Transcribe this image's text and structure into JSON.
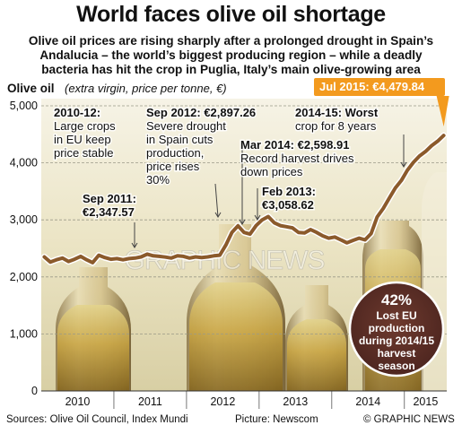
{
  "header": {
    "title": "World faces olive oil shortage",
    "subtitle_lines": [
      "Olive oil prices are rising sharply after a prolonged drought in Spain’s",
      "Andalucia – the world’s biggest producing region – while a deadly",
      "bacteria has hit the crop in Puglia, Italy’s main olive-growing area"
    ]
  },
  "chart_data": {
    "type": "line",
    "title": "Olive oil",
    "subtitle": "(extra virgin, price per tonne, €)",
    "ylim": [
      0,
      5000
    ],
    "yticks": [
      "0",
      "1,000",
      "2,000",
      "3,000",
      "4,000",
      "5,000"
    ],
    "xticks": [
      "2010",
      "2011",
      "2012",
      "2013",
      "2014",
      "2015"
    ],
    "grid": true,
    "series": [
      {
        "x": [
          "2010-01",
          "2010-02",
          "2010-03",
          "2010-04",
          "2010-05",
          "2010-06",
          "2010-07",
          "2010-08",
          "2010-09",
          "2010-10",
          "2010-11",
          "2010-12",
          "2011-01",
          "2011-02",
          "2011-03",
          "2011-04",
          "2011-05",
          "2011-06",
          "2011-07",
          "2011-08",
          "2011-09",
          "2011-10",
          "2011-11",
          "2011-12",
          "2012-01",
          "2012-02",
          "2012-03",
          "2012-04",
          "2012-05",
          "2012-06",
          "2012-07",
          "2012-08",
          "2012-09",
          "2012-10",
          "2012-11",
          "2012-12",
          "2013-01",
          "2013-02",
          "2013-03",
          "2013-04",
          "2013-05",
          "2013-06",
          "2013-07",
          "2013-08",
          "2013-09",
          "2013-10",
          "2013-11",
          "2013-12",
          "2014-01",
          "2014-02",
          "2014-03",
          "2014-04",
          "2014-05",
          "2014-06",
          "2014-07",
          "2014-08",
          "2014-09",
          "2014-10",
          "2014-11",
          "2014-12",
          "2015-01",
          "2015-02",
          "2015-03",
          "2015-04",
          "2015-05",
          "2015-06",
          "2015-07"
        ],
        "values": [
          2350,
          2260,
          2300,
          2330,
          2270,
          2310,
          2360,
          2300,
          2250,
          2380,
          2340,
          2310,
          2320,
          2300,
          2320,
          2330,
          2350,
          2400,
          2370,
          2360,
          2347,
          2330,
          2370,
          2360,
          2330,
          2350,
          2340,
          2350,
          2370,
          2380,
          2560,
          2780,
          2897,
          2780,
          2750,
          2900,
          3000,
          3058,
          2950,
          2900,
          2880,
          2860,
          2780,
          2770,
          2830,
          2780,
          2720,
          2680,
          2700,
          2650,
          2598,
          2640,
          2680,
          2650,
          2760,
          3050,
          3200,
          3380,
          3560,
          3690,
          3870,
          4010,
          4120,
          4200,
          4300,
          4380,
          4479.84
        ]
      }
    ],
    "annotations": [
      {
        "date": "2011-09",
        "value": 2347.57,
        "label": [
          "Sep 2011:",
          "€2,347.57"
        ]
      },
      {
        "date": "2011-01",
        "value": 2320,
        "label": [
          "2010-12:",
          "Large crops",
          "in EU keep",
          "price stable"
        ]
      },
      {
        "date": "2012-09",
        "value": 2897.26,
        "label": [
          "Sep 2012: €2,897.26",
          "Severe drought",
          "in Spain cuts",
          "production,",
          "price rises",
          "30%"
        ]
      },
      {
        "date": "2013-02",
        "value": 3058.62,
        "label": [
          "Feb 2013:",
          "€3,058.62"
        ]
      },
      {
        "date": "2014-03",
        "value": 2598.91,
        "label": [
          "Mar 2014: €2,598.91",
          "Record harvest drives",
          "down prices"
        ]
      },
      {
        "date": "2014-11",
        "value": 3560,
        "label": [
          "2014-15: Worst",
          "crop for 8 years"
        ]
      },
      {
        "date": "2015-07",
        "value": 4479.84,
        "label": [
          "Jul 2015: €4,479.84"
        ]
      }
    ],
    "callout": {
      "value": "42%",
      "lines": [
        "Lost EU",
        "production",
        "during 2014/15",
        "harvest",
        "season"
      ]
    }
  },
  "watermark": "GRAPHIC NEWS",
  "footer": {
    "sources": "Sources: Olive Oil Council, Index Mundi",
    "picture": "Picture: Newscom",
    "credit": "© GRAPHIC NEWS"
  },
  "colors": {
    "line": "#8b5a2b",
    "highlight": "#f39a1e",
    "callout": "#5a2d24",
    "label_bg": "#ffffff"
  }
}
